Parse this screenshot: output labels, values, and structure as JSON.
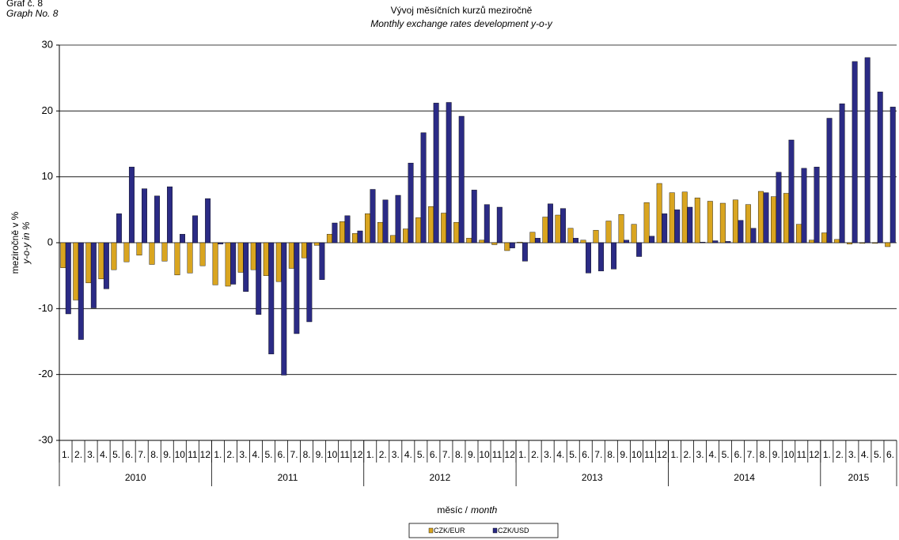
{
  "chart_data": {
    "type": "bar",
    "graph_number": "Graf č. 8",
    "graph_number_en": "Graph No. 8",
    "title": "Vývoj měsíčních kurzů meziročně",
    "subtitle": "Monthly exchange rates development  y-o-y",
    "ylabel": "meziročně v %",
    "ylabel_en": "y-o-y in %",
    "xlabel": "měsíc /",
    "xlabel_en": "month",
    "category_groups": [
      {
        "label": "2010",
        "categories": [
          "1.",
          "2.",
          "3.",
          "4.",
          "5.",
          "6.",
          "7.",
          "8.",
          "9.",
          "10",
          "11",
          "12"
        ]
      },
      {
        "label": "2011",
        "categories": [
          "1.",
          "2.",
          "3.",
          "4.",
          "5.",
          "6.",
          "7.",
          "8.",
          "9.",
          "10",
          "11",
          "12"
        ]
      },
      {
        "label": "2012",
        "categories": [
          "1.",
          "2.",
          "3.",
          "4.",
          "5.",
          "6.",
          "7.",
          "8.",
          "9.",
          "10",
          "11",
          "12"
        ]
      },
      {
        "label": "2013",
        "categories": [
          "1.",
          "2.",
          "3.",
          "4.",
          "5.",
          "6.",
          "7.",
          "8.",
          "9.",
          "10",
          "11",
          "12"
        ]
      },
      {
        "label": "2014",
        "categories": [
          "1.",
          "2.",
          "3.",
          "4.",
          "5.",
          "6.",
          "7.",
          "8.",
          "9.",
          "10",
          "11",
          "12"
        ]
      },
      {
        "label": "2015",
        "categories": [
          "1.",
          "2.",
          "3.",
          "4.",
          "5.",
          "6."
        ]
      }
    ],
    "series": [
      {
        "name": "CZK/EUR",
        "color": "#d9a520",
        "values": [
          -3.8,
          -8.7,
          -6.1,
          -5.5,
          -4.1,
          -2.9,
          -1.9,
          -3.3,
          -2.8,
          -4.9,
          -4.6,
          -3.5,
          -6.4,
          -6.6,
          -4.5,
          -4.1,
          -5.0,
          -5.9,
          -3.9,
          -2.3,
          -0.4,
          1.3,
          3.2,
          1.4,
          4.4,
          3.1,
          1.1,
          2.1,
          3.8,
          5.5,
          4.5,
          3.1,
          0.7,
          0.4,
          -0.3,
          -1.2,
          0.1,
          1.6,
          3.9,
          4.2,
          2.2,
          0.4,
          1.9,
          3.3,
          4.3,
          2.8,
          6.1,
          9.0,
          7.6,
          7.7,
          6.8,
          6.3,
          6.0,
          6.5,
          5.8,
          7.8,
          7.0,
          7.5,
          2.8,
          0.4,
          1.5,
          0.5,
          -0.2,
          -0.1,
          -0.1,
          -0.6
        ]
      },
      {
        "name": "CZK/USD",
        "color": "#2b2b85",
        "values": [
          -10.8,
          -14.7,
          -9.9,
          -7.0,
          4.4,
          11.5,
          8.2,
          7.1,
          8.5,
          1.3,
          4.1,
          6.7,
          -0.2,
          -6.3,
          -7.4,
          -10.9,
          -16.9,
          -20.1,
          -13.8,
          -12.0,
          -5.6,
          3.0,
          4.1,
          1.8,
          8.1,
          6.5,
          7.2,
          12.1,
          16.7,
          21.2,
          21.3,
          19.2,
          8.0,
          5.8,
          5.4,
          -0.8,
          -2.8,
          0.7,
          5.9,
          5.2,
          0.7,
          -4.6,
          -4.3,
          -4.0,
          0.4,
          -2.1,
          1.0,
          4.4,
          5.0,
          5.4,
          0.1,
          0.3,
          0.2,
          3.4,
          2.2,
          7.6,
          10.7,
          15.6,
          11.3,
          11.5,
          18.9,
          21.1,
          27.5,
          28.1,
          22.9,
          20.6
        ]
      }
    ],
    "ylim": [
      -30,
      30
    ],
    "yticks": [
      -30,
      -20,
      -10,
      0,
      10,
      20,
      30
    ],
    "grid": true,
    "legend": "bottom"
  }
}
